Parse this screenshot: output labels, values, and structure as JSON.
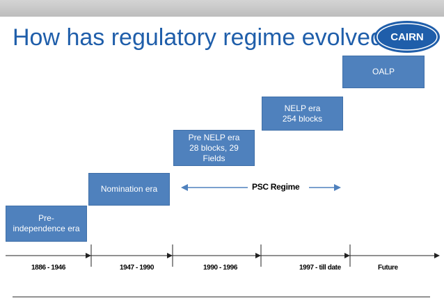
{
  "slide": {
    "title": "How has regulatory regime evolved",
    "logo_text": "CAIRN"
  },
  "stages": [
    {
      "label": "Pre-\nindependence era"
    },
    {
      "label": "Nomination era"
    },
    {
      "label": "Pre NELP era\n28 blocks, 29\nFields"
    },
    {
      "label": "NELP era\n254 blocks"
    },
    {
      "label": "OALP"
    }
  ],
  "psc_regime": {
    "label": "PSC Regime"
  },
  "timeline": {
    "periods": [
      "1886 - 1946",
      "1947 - 1990",
      "1990 - 1996",
      "1997 - till date",
      "Future"
    ]
  },
  "colors": {
    "title": "#1f5eaa",
    "box_fill": "#4f81bd",
    "arrow": "#4f81bd",
    "logo": "#1f5eaa"
  }
}
